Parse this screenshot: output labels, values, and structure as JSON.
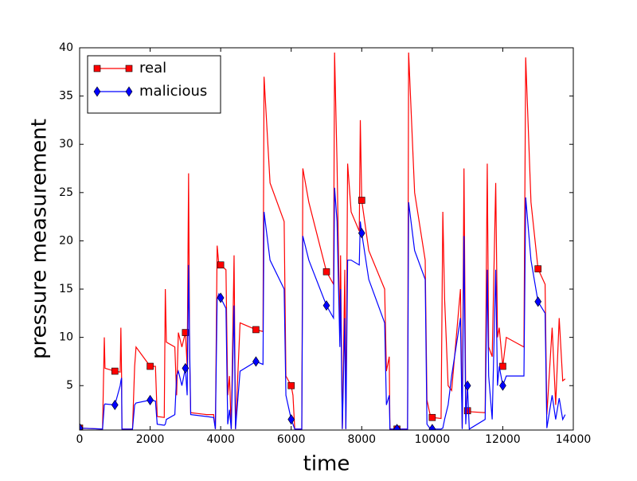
{
  "chart_data": {
    "type": "line",
    "xlabel": "time",
    "ylabel": "pressure measurement",
    "x": [
      0,
      650,
      700,
      720,
      1000,
      1150,
      1170,
      1190,
      1200,
      1500,
      1560,
      1600,
      2000,
      2150,
      2200,
      2400,
      2430,
      2460,
      2700,
      2750,
      2800,
      2900,
      3000,
      3050,
      3090,
      3120,
      3150,
      3600,
      3800,
      3850,
      3900,
      3950,
      4000,
      4150,
      4200,
      4250,
      4300,
      4380,
      4420,
      4550,
      5000,
      5200,
      5230,
      5400,
      5800,
      5850,
      6000,
      6050,
      6100,
      6300,
      6330,
      6500,
      7000,
      7200,
      7230,
      7300,
      7380,
      7400,
      7450,
      7520,
      7550,
      7600,
      7700,
      7930,
      7960,
      8000,
      8200,
      8650,
      8700,
      8780,
      8800,
      9000,
      9300,
      9330,
      9500,
      9800,
      9850,
      9950,
      10000,
      10250,
      10300,
      10350,
      10450,
      10550,
      10800,
      10850,
      10900,
      10950,
      11000,
      11050,
      11500,
      11560,
      11600,
      11700,
      11800,
      11850,
      11900,
      12000,
      12100,
      12600,
      12650,
      12800,
      13000,
      13200,
      13250,
      13400,
      13500,
      13600,
      13700,
      13770
    ],
    "series": [
      {
        "name": "real",
        "color": "#ff0000",
        "marker": "square",
        "markevery": 1000,
        "values": [
          0.6,
          0.5,
          10,
          6.8,
          6.5,
          6.4,
          11,
          6,
          0.5,
          0.5,
          7,
          9,
          7,
          7,
          1.8,
          1.7,
          15,
          9.5,
          9,
          4,
          10.5,
          9,
          10.5,
          7,
          27,
          8,
          2.2,
          2,
          2,
          0.5,
          19.5,
          17.5,
          17.5,
          17,
          4,
          6,
          0.5,
          18.5,
          0.5,
          11.5,
          10.8,
          10.6,
          37,
          26,
          22,
          6,
          5,
          4,
          0.5,
          0.5,
          27.5,
          24,
          16.8,
          15.5,
          39.5,
          28,
          10,
          18.5,
          0.5,
          17,
          0.5,
          28,
          23,
          21,
          32.5,
          24.2,
          19,
          15,
          6.5,
          8,
          0.5,
          0.5,
          0.5,
          39.5,
          25,
          18,
          3.5,
          1.8,
          1.7,
          1.6,
          23,
          14,
          5,
          4.5,
          15,
          0.6,
          27.5,
          3,
          2.4,
          2.3,
          2.2,
          28,
          9,
          8,
          26,
          10,
          11,
          7,
          10,
          9,
          39,
          24,
          17.1,
          15.5,
          2,
          11,
          3,
          12,
          5.5,
          5.7
        ]
      },
      {
        "name": "malicious",
        "color": "#0000ff",
        "marker": "diamond",
        "markevery": 1000,
        "values": [
          0.6,
          0.5,
          3,
          3.1,
          3.0,
          5,
          5.5,
          5.8,
          0.5,
          0.5,
          3,
          3.2,
          3.5,
          3.4,
          1.0,
          0.9,
          1.0,
          1.5,
          2,
          6,
          6.5,
          5,
          6.8,
          4,
          17.5,
          9,
          2,
          1.8,
          1.7,
          0.5,
          14,
          14.5,
          14.1,
          13,
          1,
          2.5,
          0.5,
          13.3,
          0.5,
          6.5,
          7.5,
          7.2,
          23,
          18,
          15,
          4,
          1.5,
          1,
          0.5,
          0.5,
          20.5,
          18,
          13.3,
          12,
          25.5,
          22,
          9,
          15,
          0.5,
          12,
          0.5,
          18,
          18,
          17.5,
          22,
          20.8,
          16,
          11.5,
          3,
          4,
          0.5,
          0.5,
          0.5,
          24,
          19,
          16,
          1,
          0.5,
          0.5,
          0.5,
          0.6,
          1.5,
          3,
          6,
          12,
          0.5,
          20.5,
          1,
          5,
          0.5,
          1.5,
          17,
          6,
          1.5,
          17,
          5,
          7,
          5,
          6,
          6,
          24.5,
          18,
          13.7,
          12.5,
          0.6,
          4,
          1.5,
          3.7,
          1.5,
          2
        ]
      }
    ],
    "xlim": [
      0,
      14000
    ],
    "xticks": [
      0,
      2000,
      4000,
      6000,
      8000,
      10000,
      12000,
      14000
    ],
    "ylim": [
      0.4,
      40
    ],
    "yticks": [
      5,
      10,
      15,
      20,
      25,
      30,
      35,
      40
    ],
    "legend": "upper left"
  }
}
